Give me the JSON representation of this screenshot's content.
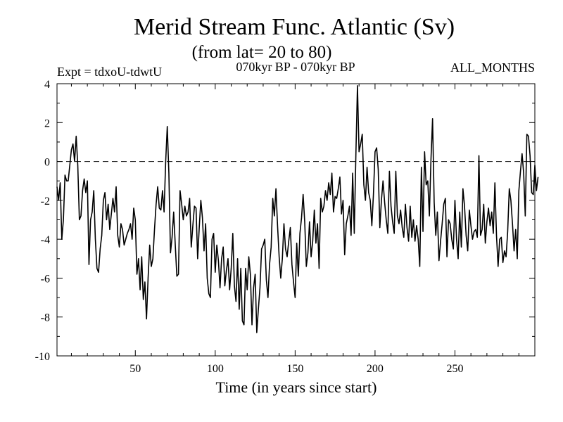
{
  "chart_data": {
    "type": "line",
    "title": "Merid Stream Func. Atlantic (Sv)",
    "subtitle": "(from lat= 20 to 80)",
    "left_label": "Expt = tdxoU-tdwtU",
    "center_label": "070kyr BP - 070kyr BP",
    "right_label": "ALL_MONTHS",
    "xlabel": "Time (in years since start)",
    "ylabel": "",
    "xlim": [
      1,
      300
    ],
    "ylim": [
      -10,
      4
    ],
    "x_ticks": [
      50,
      100,
      150,
      200,
      250
    ],
    "y_ticks": [
      -10,
      -8,
      -6,
      -4,
      -2,
      0,
      2,
      4
    ],
    "reference_line": 0,
    "series": [
      {
        "name": "Merid Stream Func.",
        "x_start": 1,
        "x_step": 1,
        "values": [
          -1.3,
          -2.0,
          -1.1,
          -4.0,
          -3.0,
          -0.7,
          -1.0,
          -1.0,
          -0.2,
          0.6,
          0.9,
          0.0,
          1.3,
          -0.2,
          -3.0,
          -2.8,
          -1.5,
          -0.9,
          -1.6,
          -1.0,
          -5.3,
          -3.0,
          -2.6,
          -1.5,
          -4.0,
          -5.5,
          -5.7,
          -4.5,
          -3.8,
          -2.0,
          -1.6,
          -3.0,
          -2.2,
          -3.5,
          -2.7,
          -1.9,
          -2.6,
          -1.3,
          -3.8,
          -4.4,
          -3.2,
          -3.5,
          -4.3,
          -4.0,
          -3.7,
          -3.5,
          -3.2,
          -4.0,
          -2.4,
          -3.0,
          -5.8,
          -5.0,
          -6.6,
          -4.9,
          -7.1,
          -6.2,
          -8.1,
          -6.0,
          -4.3,
          -5.4,
          -5.0,
          -3.5,
          -2.2,
          -1.3,
          -2.4,
          -2.5,
          -1.5,
          -2.6,
          0.0,
          1.8,
          -0.6,
          -4.7,
          -3.9,
          -2.6,
          -4.3,
          -5.9,
          -5.8,
          -1.5,
          -2.2,
          -3.0,
          -2.3,
          -2.8,
          -2.6,
          -1.9,
          -4.4,
          -3.3,
          -2.3,
          -2.4,
          -5.0,
          -3.4,
          -2.0,
          -2.9,
          -4.6,
          -3.2,
          -6.0,
          -6.8,
          -7.0,
          -4.0,
          -3.7,
          -5.7,
          -4.3,
          -5.1,
          -6.5,
          -5.0,
          -4.4,
          -6.4,
          -5.6,
          -5.0,
          -6.6,
          -5.5,
          -3.7,
          -6.4,
          -7.2,
          -5.0,
          -7.6,
          -5.5,
          -8.2,
          -8.4,
          -5.5,
          -6.6,
          -4.9,
          -5.8,
          -8.4,
          -6.5,
          -5.8,
          -8.8,
          -7.6,
          -6.5,
          -4.5,
          -4.3,
          -4.0,
          -6.1,
          -7.0,
          -5.3,
          -4.4,
          -1.9,
          -2.8,
          -1.4,
          -3.3,
          -4.9,
          -6.0,
          -5.0,
          -3.2,
          -4.5,
          -4.9,
          -4.1,
          -3.4,
          -5.3,
          -6.2,
          -7.0,
          -4.2,
          -5.9,
          -3.7,
          -2.9,
          -1.7,
          -3.1,
          -5.4,
          -4.7,
          -3.1,
          -4.9,
          -4.1,
          -2.5,
          -4.2,
          -3.2,
          -5.5,
          -1.9,
          -2.6,
          -2.3,
          -1.5,
          -2.0,
          -1.1,
          -1.7,
          -0.6,
          -2.6,
          -1.8,
          -1.9,
          -1.4,
          -0.8,
          -2.7,
          -2.0,
          -4.8,
          -3.2,
          -2.8,
          -2.3,
          -3.8,
          -0.6,
          -3.7,
          0.3,
          3.9,
          0.5,
          0.9,
          1.4,
          -1.2,
          -2.0,
          -0.3,
          -1.6,
          -2.0,
          -3.3,
          -1.7,
          0.5,
          0.7,
          -0.4,
          -3.4,
          -2.0,
          -1.0,
          -2.1,
          -3.0,
          -3.7,
          -0.5,
          -2.3,
          -3.1,
          -3.7,
          -0.5,
          -2.8,
          -3.2,
          -2.5,
          -3.4,
          -3.9,
          -2.2,
          -3.4,
          -4.1,
          -2.3,
          -3.9,
          -3.0,
          -4.1,
          -3.3,
          -4.0,
          -5.4,
          -0.3,
          -3.6,
          0.5,
          -1.2,
          -1.0,
          -2.8,
          0.1,
          2.2,
          -2.1,
          -3.8,
          -2.6,
          -5.1,
          -4.1,
          -3.2,
          -2.2,
          -1.9,
          -4.9,
          -3.0,
          -3.2,
          -4.0,
          -4.5,
          -2.0,
          -4.0,
          -5.0,
          -2.6,
          -4.4,
          -1.4,
          -2.3,
          -3.8,
          -4.6,
          -2.5,
          -3.3,
          -4.0,
          -3.6,
          -3.5,
          -3.9,
          0.3,
          -3.8,
          -3.5,
          -2.2,
          -4.2,
          -3.1,
          -2.4,
          -3.3,
          -2.6,
          -3.7,
          -1.1,
          -3.8,
          -5.4,
          -4.0,
          -3.9,
          -5.2,
          -4.6,
          -4.9,
          -3.6,
          -1.4,
          -2.0,
          -3.2,
          -4.6,
          -3.5,
          -5.0,
          -1.5,
          -0.5,
          0.4,
          -0.6,
          -2.8,
          1.4,
          1.3,
          0.3,
          -1.6,
          -1.7,
          -0.2,
          -1.5,
          -0.8
        ]
      }
    ]
  }
}
